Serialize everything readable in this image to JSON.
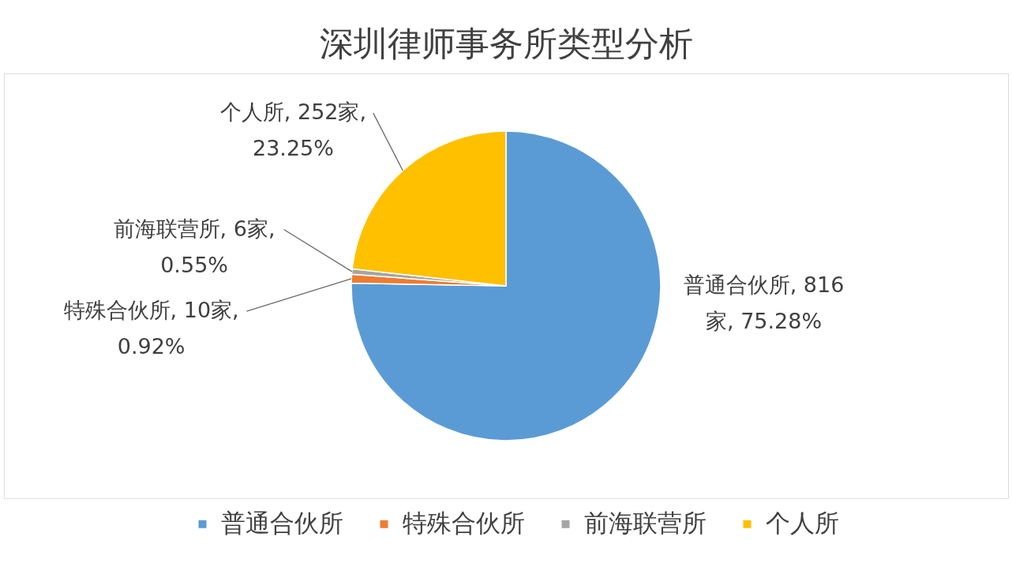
{
  "chart_data": {
    "type": "pie",
    "title": "深圳律师事务所类型分析",
    "categories": [
      "普通合伙所",
      "特殊合伙所",
      "前海联营所",
      "个人所"
    ],
    "values": [
      816,
      10,
      6,
      252
    ],
    "colors": [
      "#5b9bd5",
      "#ed7d31",
      "#a5a5a5",
      "#ffc000"
    ],
    "value_labels": [
      "普通合伙所, 816\n家, 75.28%",
      "特殊合伙所, 10家,\n0.92%",
      "前海联营所, 6家,\n0.55%",
      "个人所, 252家,\n23.25%"
    ],
    "legend": "bottom"
  }
}
